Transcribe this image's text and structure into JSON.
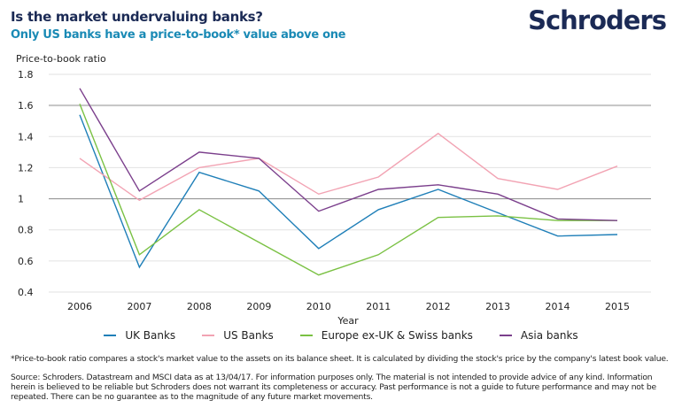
{
  "header": {
    "title": "Is the market undervaluing banks?",
    "subtitle": "Only US banks have a price-to-book* value above one",
    "logo": "Schroders"
  },
  "colors": {
    "title": "#1b2a55",
    "subtitle": "#1a8ab5"
  },
  "chart_data": {
    "type": "line",
    "title": "Is the market undervaluing banks?",
    "subtitle": "Only US banks have a price-to-book* value above one",
    "xlabel": "Year",
    "ylabel": "Price-to-book ratio",
    "x": [
      2006,
      2007,
      2008,
      2009,
      2010,
      2011,
      2012,
      2013,
      2014,
      2015
    ],
    "ylim": [
      0.4,
      1.8
    ],
    "yticks": [
      "0.4",
      "0.6",
      "0.8",
      "1",
      "1.2",
      "1.4",
      "1.6",
      "1.8"
    ],
    "grid": true,
    "legend": "bottom",
    "series": [
      {
        "name": "UK Banks",
        "color": "#1f7fb8",
        "values": [
          1.54,
          0.56,
          1.17,
          1.05,
          0.68,
          0.93,
          1.06,
          0.91,
          0.76,
          0.77
        ]
      },
      {
        "name": "US Banks",
        "color": "#f2a3b3",
        "values": [
          1.26,
          0.99,
          1.2,
          1.26,
          1.03,
          1.14,
          1.42,
          1.13,
          1.06,
          1.21
        ]
      },
      {
        "name": "Europe ex-UK & Swiss banks",
        "color": "#7ac143",
        "values": [
          1.61,
          0.64,
          0.93,
          0.72,
          0.51,
          0.64,
          0.88,
          0.89,
          0.86,
          0.86
        ]
      },
      {
        "name": "Asia banks",
        "color": "#7b3f8c",
        "values": [
          1.71,
          1.05,
          1.3,
          1.26,
          0.92,
          1.06,
          1.09,
          1.03,
          0.87,
          0.86
        ]
      }
    ]
  },
  "footer": {
    "note": "*Price-to-book ratio compares a stock's market value to the assets on its balance sheet. It is calculated by dividing the stock's price by the company's latest book value.",
    "source": "Source: Schroders. Datastream and MSCI data as at 13/04/17. For information purposes only. The material is not intended to provide advice of any kind. Information herein is believed to be reliable but Schroders does not warrant its completeness or accuracy. Past performance is not a guide to future performance and may not be repeated. There can be no guarantee as to the magnitude of any future market movements."
  }
}
